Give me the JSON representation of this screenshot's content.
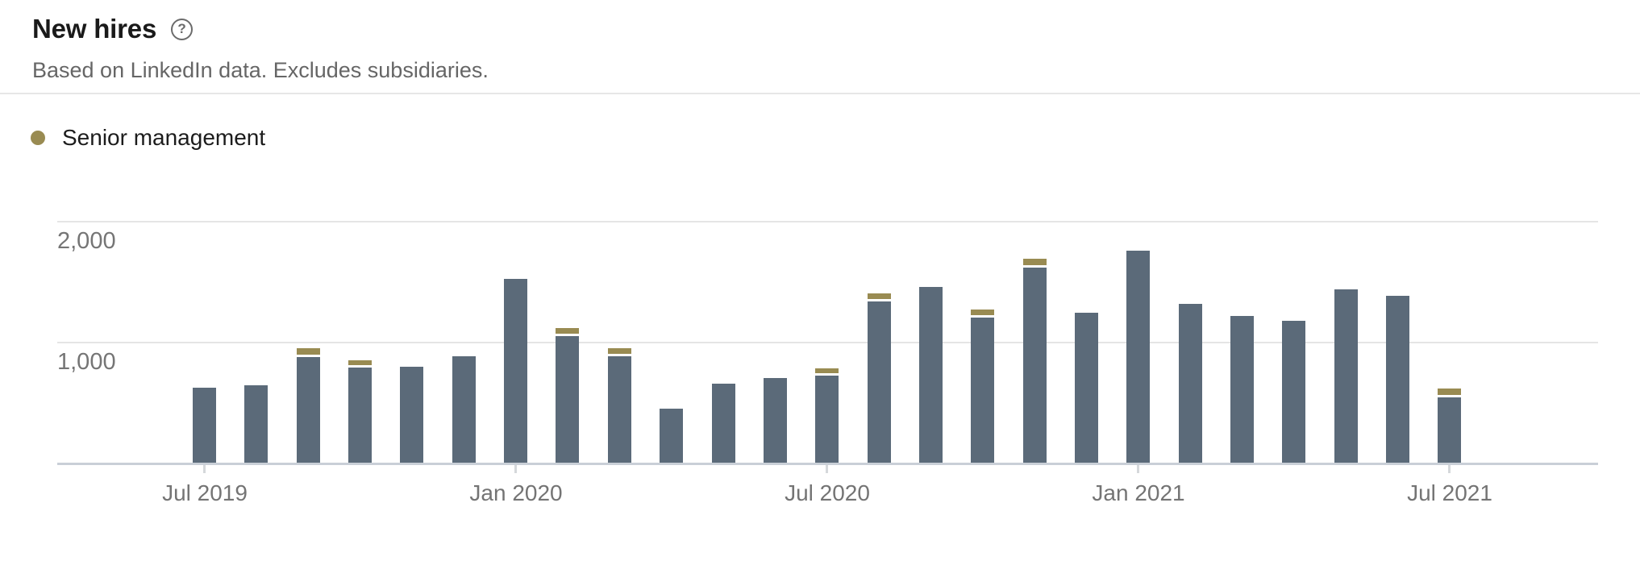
{
  "header": {
    "title": "New hires",
    "subtitle": "Based on LinkedIn data. Excludes subsidiaries.",
    "help_glyph": "?"
  },
  "legend": {
    "items": [
      {
        "label": "Senior management",
        "color": "#998b52"
      }
    ]
  },
  "chart_data": {
    "type": "bar",
    "title": "New hires",
    "subtitle": "Based on LinkedIn data. Excludes subsidiaries.",
    "legend_position": "top-left",
    "grid": true,
    "colors": {
      "total_bar": "#5b6a79",
      "senior_bar": "#998b52"
    },
    "y_axis": {
      "ylim": [
        0,
        2150
      ],
      "ticks": [
        {
          "value": 1000,
          "label": "1,000"
        },
        {
          "value": 2000,
          "label": "2,000"
        }
      ]
    },
    "x_axis": {
      "tick_labels": [
        {
          "label": "Jul 2019",
          "month_index": 0
        },
        {
          "label": "Jan 2020",
          "month_index": 6
        },
        {
          "label": "Jul 2020",
          "month_index": 12
        },
        {
          "label": "Jan 2021",
          "month_index": 18
        },
        {
          "label": "Jul 2021",
          "month_index": 24
        }
      ]
    },
    "months": [
      {
        "label": "Jul 2019",
        "total": 620,
        "senior": 0
      },
      {
        "label": "Aug 2019",
        "total": 640,
        "senior": 0
      },
      {
        "label": "Sep 2019",
        "total": 945,
        "senior": 50
      },
      {
        "label": "Oct 2019",
        "total": 845,
        "senior": 40
      },
      {
        "label": "Nov 2019",
        "total": 795,
        "senior": 0
      },
      {
        "label": "Dec 2019",
        "total": 880,
        "senior": 0
      },
      {
        "label": "Jan 2020",
        "total": 1520,
        "senior": 0
      },
      {
        "label": "Feb 2020",
        "total": 1110,
        "senior": 45
      },
      {
        "label": "Mar 2020",
        "total": 945,
        "senior": 45
      },
      {
        "label": "Apr 2020",
        "total": 445,
        "senior": 0
      },
      {
        "label": "May 2020",
        "total": 655,
        "senior": 0
      },
      {
        "label": "Jun 2020",
        "total": 700,
        "senior": 0
      },
      {
        "label": "Jul 2020",
        "total": 780,
        "senior": 40
      },
      {
        "label": "Aug 2020",
        "total": 1400,
        "senior": 45
      },
      {
        "label": "Sep 2020",
        "total": 1450,
        "senior": 0
      },
      {
        "label": "Oct 2020",
        "total": 1265,
        "senior": 45
      },
      {
        "label": "Nov 2020",
        "total": 1685,
        "senior": 50
      },
      {
        "label": "Dec 2020",
        "total": 1240,
        "senior": 0
      },
      {
        "label": "Jan 2021",
        "total": 1755,
        "senior": 0
      },
      {
        "label": "Feb 2021",
        "total": 1310,
        "senior": 0
      },
      {
        "label": "Mar 2021",
        "total": 1215,
        "senior": 0
      },
      {
        "label": "Apr 2021",
        "total": 1175,
        "senior": 0
      },
      {
        "label": "May 2021",
        "total": 1430,
        "senior": 0
      },
      {
        "label": "Jun 2021",
        "total": 1380,
        "senior": 0
      },
      {
        "label": "Jul 2021",
        "total": 610,
        "senior": 50
      }
    ]
  }
}
